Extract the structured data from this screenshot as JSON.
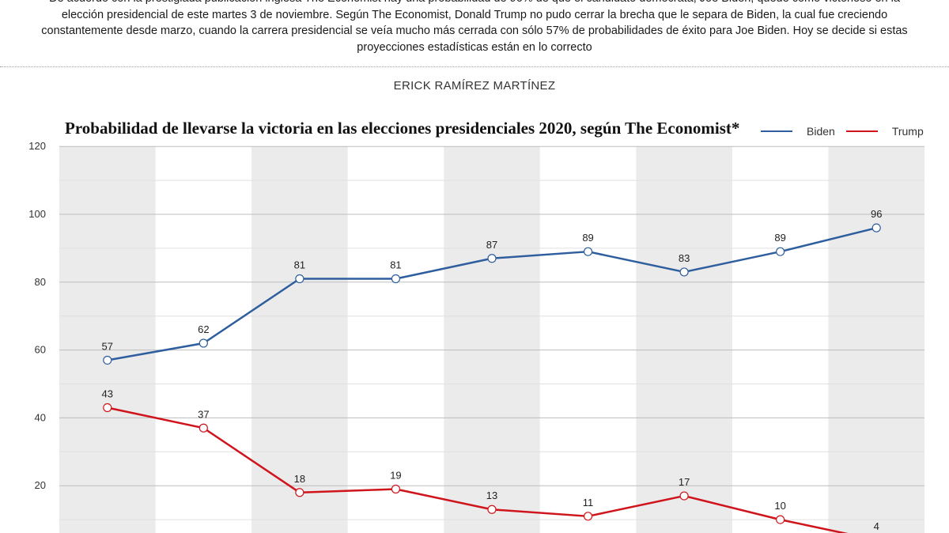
{
  "intro": {
    "lines": [
      "De acuerdo con la prestigiada publicación inglesa The Economist hay una probabilidad de 96% de que el candidato demócrata, Joe Biden, quede como victorioso en la",
      "elección presidencial de este martes 3 de noviembre. Según The Economist, Donald Trump no pudo cerrar la brecha que le separa de Biden, la cual fue creciendo",
      "constantemente desde marzo, cuando la carrera presidencial se veía mucho más cerrada con sólo 57% de probabilidades de éxito para Joe Biden. Hoy se decide si estas",
      "proyecciones estadísticas están en lo correcto"
    ]
  },
  "author": "ERICK RAMÍREZ MARTÍNEZ",
  "colors": {
    "biden": "#2f5e9e",
    "trump": "#d0141b",
    "band": "#ebebeb",
    "grid": "#c8c8c8"
  },
  "chart_data": {
    "type": "line",
    "title": "Probabilidad de llevarse la victoria en las elecciones presidenciales 2020, según The Economist*",
    "xlabel": "",
    "ylabel": "",
    "ylim": [
      0,
      120
    ],
    "yticks": [
      20,
      40,
      60,
      80,
      100,
      120
    ],
    "grid": true,
    "legend_placement": "top-right",
    "x": [
      1,
      2,
      3,
      4,
      5,
      6,
      7,
      8,
      9
    ],
    "series": [
      {
        "name": "Biden",
        "values": [
          57,
          62,
          81,
          81,
          87,
          89,
          83,
          89,
          96
        ]
      },
      {
        "name": "Trump",
        "values": [
          43,
          37,
          18,
          19,
          13,
          11,
          17,
          10,
          4
        ]
      }
    ]
  }
}
